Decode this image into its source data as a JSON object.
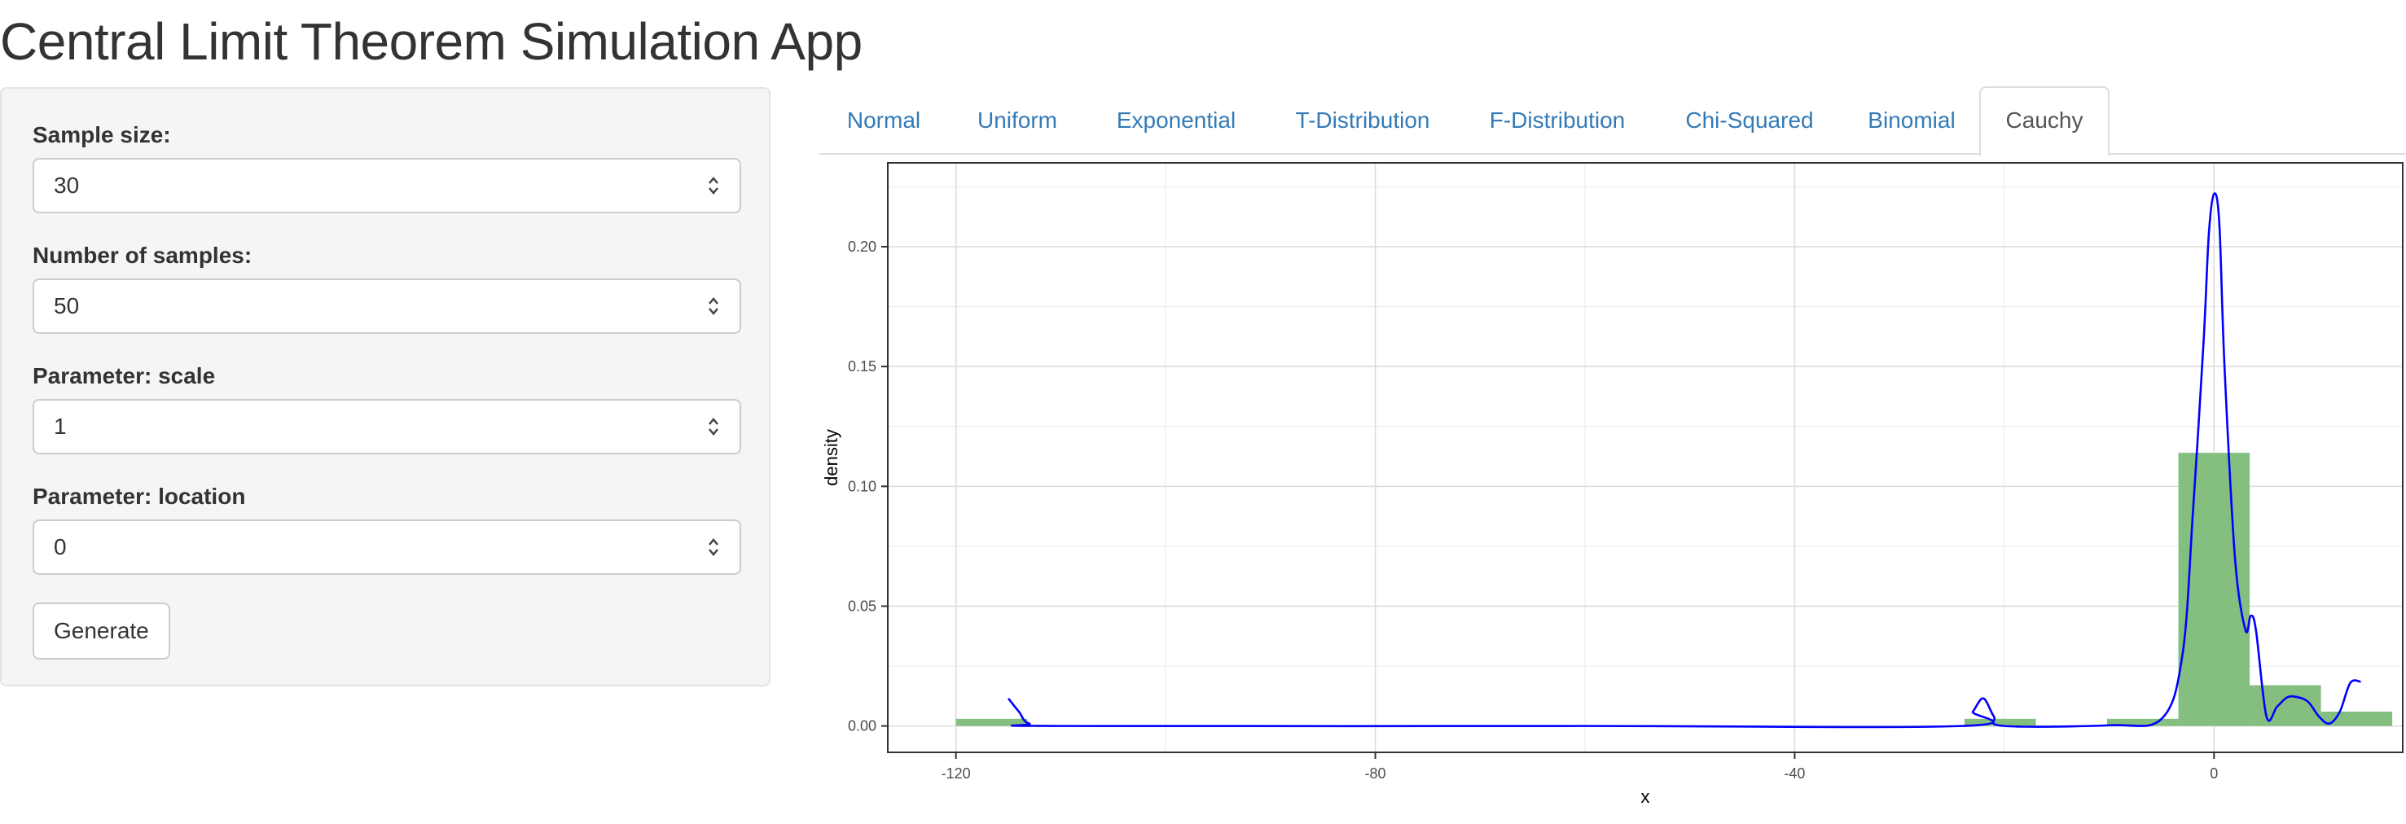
{
  "app": {
    "title": "Central Limit Theorem Simulation App"
  },
  "sidebar": {
    "sample_size": {
      "label": "Sample size:",
      "value": "30"
    },
    "num_samples": {
      "label": "Number of samples:",
      "value": "50"
    },
    "param_scale": {
      "label": "Parameter: scale",
      "value": "1"
    },
    "param_location": {
      "label": "Parameter: location",
      "value": "0"
    },
    "generate_label": "Generate"
  },
  "tabs": {
    "active": "Cauchy",
    "items": [
      {
        "label": "Normal"
      },
      {
        "label": "Uniform"
      },
      {
        "label": "Exponential"
      },
      {
        "label": "T-Distribution"
      },
      {
        "label": "F-Distribution"
      },
      {
        "label": "Chi-Squared"
      },
      {
        "label": "Binomial"
      },
      {
        "label": "Cauchy"
      }
    ]
  },
  "chart_data": {
    "type": "bar",
    "title": "",
    "xlabel": "x",
    "ylabel": "density",
    "xlim": [
      -126.5,
      18
    ],
    "ylim": [
      -0.011,
      0.235
    ],
    "x_ticks": [
      -120,
      -80,
      -40,
      0
    ],
    "x_tick_labels": [
      "-120",
      "-80",
      "-40",
      "0"
    ],
    "y_ticks": [
      0,
      0.05,
      0.1,
      0.15,
      0.2
    ],
    "y_tick_labels": [
      "0.00",
      "0.05",
      "0.10",
      "0.15",
      "0.20"
    ],
    "grid": true,
    "bar_color": "#85bf80",
    "line_color": "#0000ff",
    "histogram": [
      {
        "x0": -120.0,
        "x1": -113.2,
        "density": 0.003
      },
      {
        "x0": -23.8,
        "x1": -17.0,
        "density": 0.003
      },
      {
        "x0": -10.2,
        "x1": -3.4,
        "density": 0.003
      },
      {
        "x0": -3.4,
        "x1": 3.4,
        "density": 0.114
      },
      {
        "x0": 3.4,
        "x1": 10.2,
        "density": 0.017
      },
      {
        "x0": 10.2,
        "x1": 17.0,
        "density": 0.006
      }
    ],
    "density_curve": {
      "x": [
        -115,
        -114,
        -113,
        -110,
        -60,
        -24,
        -23,
        -22,
        -21,
        -20,
        -10,
        -5,
        -3,
        -2,
        -1,
        -0.5,
        0,
        0.5,
        1,
        2,
        3,
        3.5,
        4,
        5,
        6,
        7,
        8,
        9,
        10,
        11,
        12,
        13,
        14
      ],
      "y": [
        0.0115,
        0.006,
        0.001,
        0.0,
        0.0,
        0.0,
        0.006,
        0.0115,
        0.004,
        0.0,
        0.0003,
        0.003,
        0.03,
        0.09,
        0.16,
        0.205,
        0.222,
        0.21,
        0.15,
        0.07,
        0.04,
        0.046,
        0.04,
        0.004,
        0.008,
        0.012,
        0.012,
        0.01,
        0.004,
        0.001,
        0.006,
        0.018,
        0.0185
      ]
    }
  }
}
